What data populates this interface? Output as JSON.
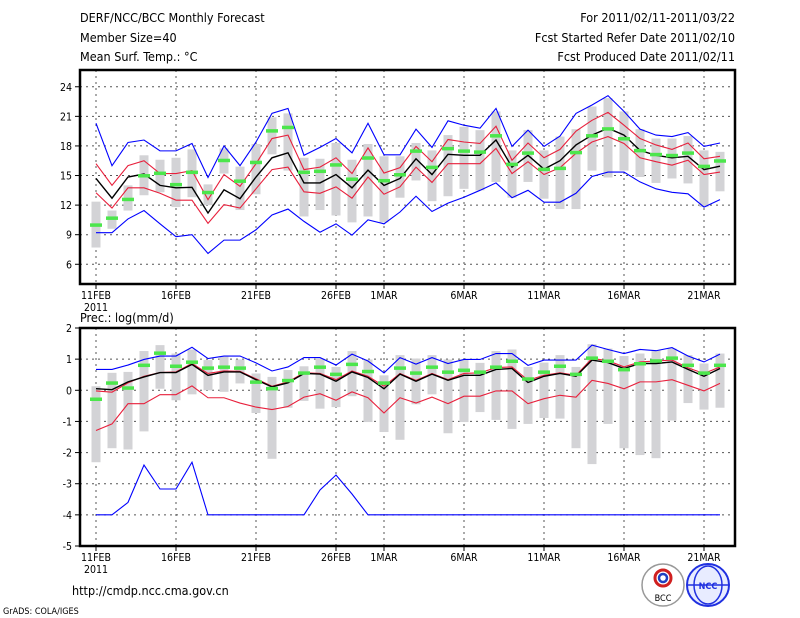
{
  "header": {
    "title": "DERF/NCC/BCC Monthly Forecast",
    "member_size": "Member Size=40",
    "variable": "Mean Surf. Temp.: °C",
    "period": "For 2011/02/11-2011/03/22",
    "started": "Fcst Started Refer Date 2011/02/10",
    "produced": "Fcst Produced Date 2011/02/11"
  },
  "footer": {
    "url": "http://cmdp.ncc.cma.gov.cn",
    "credit": "GrADS: COLA/IGES",
    "logo_left": "BCC",
    "logo_right": "NCC"
  },
  "colors": {
    "max_min": "#0000ff",
    "spread": "#e8203c",
    "mean": "#000000",
    "marker": "#4ce64c",
    "bar": "#d3d3d6",
    "grid": "#555555"
  },
  "chart_data": [
    {
      "type": "line",
      "title": "Mean Surf. Temp.: °C",
      "ylim": [
        4,
        25.7
      ],
      "yticks": [
        6,
        9,
        12,
        15,
        18,
        21,
        24
      ],
      "xtick_labels": [
        {
          "day": 0,
          "label": "11FEB",
          "sub": "2011"
        },
        {
          "day": 5,
          "label": "16FEB"
        },
        {
          "day": 10,
          "label": "21FEB"
        },
        {
          "day": 15,
          "label": "26FEB"
        },
        {
          "day": 18,
          "label": "1MAR"
        },
        {
          "day": 23,
          "label": "6MAR"
        },
        {
          "day": 28,
          "label": "11MAR"
        },
        {
          "day": 33,
          "label": "16MAR"
        },
        {
          "day": 38,
          "label": "21MAR"
        }
      ],
      "grid": true,
      "series": [
        {
          "name": "max",
          "color": "#0000ff",
          "values": [
            20.3,
            16.0,
            18.35,
            18.6,
            17.5,
            17.5,
            18.25,
            14.8,
            18.0,
            16.0,
            18.4,
            21.3,
            21.8,
            17.05,
            17.85,
            18.75,
            17.3,
            20.3,
            17.1,
            17.1,
            19.7,
            17.85,
            20.55,
            20.1,
            19.8,
            21.8,
            17.95,
            19.6,
            17.95,
            19.0,
            21.3,
            22.15,
            23.1,
            21.5,
            19.7,
            19.1,
            18.95,
            19.35,
            17.95,
            18.3
          ]
        },
        {
          "name": "upper",
          "color": "#e8203c",
          "values": [
            16.2,
            14.0,
            16.0,
            16.5,
            15.2,
            15.2,
            15.5,
            12.55,
            15.1,
            13.9,
            16.2,
            18.75,
            19.1,
            15.6,
            15.85,
            16.8,
            15.2,
            17.8,
            15.25,
            15.8,
            17.95,
            16.4,
            18.65,
            18.4,
            18.25,
            20.0,
            16.55,
            18.3,
            16.8,
            17.65,
            19.5,
            20.6,
            21.4,
            20.1,
            18.75,
            18.1,
            17.65,
            18.3,
            16.7,
            16.95
          ]
        },
        {
          "name": "mean",
          "color": "#000000",
          "values": [
            14.7,
            12.7,
            14.85,
            15.15,
            14.0,
            13.75,
            13.8,
            11.2,
            13.55,
            12.65,
            14.85,
            16.8,
            17.3,
            14.25,
            14.25,
            15.1,
            13.75,
            15.55,
            14.0,
            14.7,
            16.7,
            15.1,
            17.15,
            17.05,
            17.05,
            18.6,
            15.85,
            17.05,
            15.65,
            16.5,
            18.1,
            19.1,
            19.8,
            19.1,
            17.55,
            17.05,
            16.8,
            16.95,
            15.6,
            15.95
          ]
        },
        {
          "name": "lower",
          "color": "#e8203c",
          "values": [
            13.25,
            11.7,
            13.75,
            13.75,
            13.2,
            12.5,
            12.5,
            10.15,
            12.05,
            11.7,
            13.65,
            15.6,
            15.85,
            13.35,
            13.2,
            13.85,
            12.7,
            14.85,
            13.1,
            13.85,
            15.85,
            14.3,
            16.2,
            16.2,
            16.2,
            17.75,
            15.2,
            16.4,
            15.1,
            15.8,
            17.25,
            18.4,
            18.95,
            18.25,
            16.8,
            16.4,
            16.05,
            16.55,
            15.1,
            15.35
          ]
        },
        {
          "name": "min",
          "color": "#0000ff",
          "values": [
            9.2,
            9.2,
            10.6,
            11.45,
            10.1,
            8.8,
            9.0,
            7.1,
            8.45,
            8.45,
            9.5,
            11.0,
            11.6,
            10.35,
            9.25,
            10.1,
            8.95,
            10.5,
            10.1,
            11.3,
            12.9,
            11.35,
            12.2,
            12.8,
            13.5,
            14.25,
            12.75,
            13.5,
            12.3,
            12.3,
            13.2,
            14.9,
            15.35,
            15.35,
            14.35,
            13.65,
            13.3,
            13.15,
            11.8,
            12.55
          ]
        }
      ],
      "markers": [
        10.0,
        10.7,
        12.6,
        15.0,
        15.25,
        14.1,
        15.35,
        13.3,
        16.55,
        14.45,
        16.35,
        19.55,
        19.9,
        15.35,
        15.45,
        16.1,
        14.65,
        16.8,
        14.5,
        15.1,
        17.5,
        15.85,
        17.75,
        17.5,
        17.4,
        19.05,
        16.15,
        17.3,
        15.65,
        15.75,
        17.35,
        19.05,
        19.75,
        18.75,
        17.55,
        17.15,
        17.05,
        17.3,
        15.95,
        16.5
      ],
      "bars_high": [
        12.35,
        11.45,
        14.0,
        17.05,
        16.6,
        16.8,
        17.65,
        14.1,
        17.75,
        15.9,
        18.2,
        20.9,
        21.3,
        16.8,
        16.7,
        18.3,
        16.6,
        18.2,
        16.95,
        16.95,
        18.3,
        17.55,
        19.1,
        19.95,
        19.6,
        21.5,
        17.55,
        19.6,
        17.55,
        18.95,
        19.7,
        22.0,
        22.85,
        21.5,
        19.7,
        18.75,
        18.75,
        19.0,
        17.55,
        17.4
      ],
      "bars_low": [
        7.7,
        9.6,
        11.45,
        13.0,
        13.3,
        11.8,
        12.8,
        12.0,
        15.2,
        11.5,
        13.1,
        17.15,
        15.5,
        10.85,
        11.5,
        10.95,
        10.25,
        10.85,
        10.25,
        12.75,
        14.5,
        12.4,
        12.9,
        13.65,
        13.5,
        14.35,
        12.75,
        14.35,
        12.65,
        11.6,
        11.6,
        15.5,
        14.8,
        15.5,
        14.85,
        14.25,
        14.7,
        14.2,
        11.8,
        13.4
      ]
    },
    {
      "type": "line",
      "title": "Prec.: log(mm/d)",
      "ylim": [
        -5,
        2
      ],
      "yticks": [
        -5,
        -4,
        -3,
        -2,
        -1,
        0,
        1,
        2
      ],
      "grid": true,
      "series": [
        {
          "name": "max",
          "color": "#0000ff",
          "values": [
            0.67,
            0.67,
            0.81,
            0.99,
            1.1,
            1.1,
            1.38,
            1.02,
            1.1,
            1.1,
            0.88,
            0.62,
            0.75,
            1.05,
            1.05,
            0.81,
            1.16,
            0.94,
            0.56,
            1.05,
            0.84,
            1.05,
            0.86,
            0.99,
            0.99,
            1.18,
            1.18,
            0.8,
            0.97,
            0.97,
            0.97,
            1.45,
            1.31,
            1.18,
            1.31,
            1.27,
            1.37,
            1.1,
            0.91,
            1.16
          ]
        },
        {
          "name": "upper",
          "color": "#e8203c",
          "values": [
            -0.02,
            -0.06,
            0.24,
            0.45,
            0.57,
            0.59,
            0.86,
            0.54,
            0.62,
            0.61,
            0.37,
            0.13,
            0.27,
            0.56,
            0.54,
            0.34,
            0.62,
            0.45,
            0.13,
            0.54,
            0.32,
            0.54,
            0.34,
            0.54,
            0.56,
            0.73,
            0.75,
            0.32,
            0.48,
            0.56,
            0.48,
            1.02,
            0.95,
            0.75,
            0.91,
            0.94,
            0.97,
            0.72,
            0.54,
            0.75
          ]
        },
        {
          "name": "mean",
          "color": "#000000",
          "values": [
            0.05,
            0.02,
            0.27,
            0.43,
            0.57,
            0.57,
            0.83,
            0.48,
            0.59,
            0.59,
            0.34,
            0.11,
            0.24,
            0.54,
            0.52,
            0.29,
            0.59,
            0.41,
            0.05,
            0.52,
            0.29,
            0.52,
            0.32,
            0.48,
            0.48,
            0.67,
            0.7,
            0.25,
            0.45,
            0.54,
            0.45,
            0.97,
            0.89,
            0.7,
            0.86,
            0.86,
            0.91,
            0.67,
            0.45,
            0.7
          ]
        },
        {
          "name": "lower",
          "color": "#e8203c",
          "values": [
            -1.29,
            -1.08,
            -0.43,
            -0.43,
            -0.14,
            -0.14,
            0.14,
            -0.24,
            -0.24,
            -0.41,
            -0.54,
            -0.62,
            -0.52,
            -0.22,
            -0.11,
            -0.32,
            -0.05,
            -0.24,
            -0.73,
            -0.24,
            -0.41,
            -0.22,
            -0.43,
            -0.19,
            -0.19,
            -0.02,
            -0.02,
            -0.43,
            -0.27,
            -0.16,
            -0.22,
            0.32,
            0.22,
            0.05,
            0.27,
            0.27,
            0.34,
            0.16,
            -0.02,
            0.22
          ]
        },
        {
          "name": "min",
          "color": "#0000ff",
          "values": [
            -4,
            -4,
            -3.6,
            -2.4,
            -3.17,
            -3.17,
            -2.31,
            -4,
            -4,
            -4,
            -4,
            -4,
            -4,
            -4,
            -3.2,
            -2.72,
            -3.33,
            -4,
            -4,
            -4,
            -4,
            -4,
            -4,
            -4,
            -4,
            -4,
            -4,
            -4,
            -4,
            -4,
            -4,
            -4,
            -4,
            -4,
            -4,
            -4,
            -4,
            -4,
            -4,
            -4
          ]
        }
      ],
      "markers": [
        -0.28,
        0.24,
        0.08,
        0.81,
        1.2,
        0.78,
        0.91,
        0.72,
        0.75,
        0.72,
        0.27,
        0.06,
        0.32,
        0.56,
        0.75,
        0.52,
        0.84,
        0.61,
        0.24,
        0.72,
        0.56,
        0.75,
        0.59,
        0.65,
        0.59,
        0.75,
        0.94,
        0.37,
        0.59,
        0.78,
        0.52,
        1.04,
        0.94,
        0.67,
        0.86,
        0.95,
        1.04,
        0.81,
        0.56,
        0.81
      ],
      "bars_high": [
        0.13,
        0.56,
        0.59,
        1.26,
        1.45,
        1.18,
        1.31,
        0.97,
        1.08,
        0.99,
        0.54,
        0.43,
        0.65,
        0.77,
        1.02,
        0.75,
        1.26,
        0.99,
        0.48,
        1.13,
        1.02,
        1.13,
        0.99,
        0.99,
        0.88,
        1.26,
        1.31,
        0.75,
        0.89,
        1.13,
        0.75,
        1.48,
        1.34,
        1.1,
        1.18,
        1.29,
        1.34,
        1.13,
        0.86,
        1.18
      ],
      "bars_low": [
        -2.31,
        -1.86,
        -1.9,
        -1.32,
        0.05,
        -0.32,
        -0.13,
        0,
        -0.05,
        0.22,
        -0.73,
        -2.2,
        -0.56,
        -0.34,
        -0.59,
        -0.54,
        -0.19,
        -1.02,
        -1.34,
        -1.59,
        -0.45,
        -0.13,
        -1.38,
        -1.02,
        -0.7,
        -0.95,
        -1.24,
        -1.08,
        -0.89,
        -0.91,
        -1.86,
        -2.37,
        -1.08,
        -1.86,
        -2.08,
        -2.18,
        -0.97,
        -0.41,
        -0.62,
        -0.56
      ]
    }
  ]
}
